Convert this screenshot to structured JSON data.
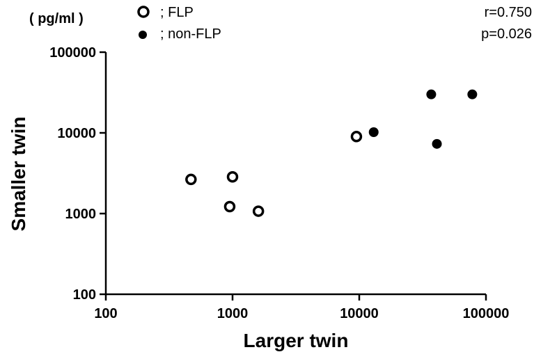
{
  "chart_data": {
    "type": "scatter",
    "unit_label": "( pg/ml )",
    "xlabel": "Larger twin",
    "ylabel": "Smaller twin",
    "x_scale": "log",
    "y_scale": "log",
    "xlim": [
      100,
      100000
    ],
    "ylim": [
      100,
      100000
    ],
    "x_ticks": [
      "100",
      "1000",
      "10000",
      "100000"
    ],
    "y_ticks": [
      "100",
      "1000",
      "10000",
      "100000"
    ],
    "grid": false,
    "legend_position": "top-left",
    "stats": {
      "r": "r=0.750",
      "p": "p=0.026"
    },
    "series": [
      {
        "name": "; FLP",
        "marker": "open-circle",
        "color": "#000000",
        "points": [
          {
            "x": 470,
            "y": 2650
          },
          {
            "x": 1000,
            "y": 2850
          },
          {
            "x": 950,
            "y": 1220
          },
          {
            "x": 1600,
            "y": 1070
          },
          {
            "x": 9500,
            "y": 9000
          }
        ]
      },
      {
        "name": "; non-FLP",
        "marker": "filled-circle",
        "color": "#000000",
        "points": [
          {
            "x": 13000,
            "y": 10200
          },
          {
            "x": 37000,
            "y": 30000
          },
          {
            "x": 41000,
            "y": 7300
          },
          {
            "x": 78000,
            "y": 30000
          }
        ]
      }
    ]
  }
}
